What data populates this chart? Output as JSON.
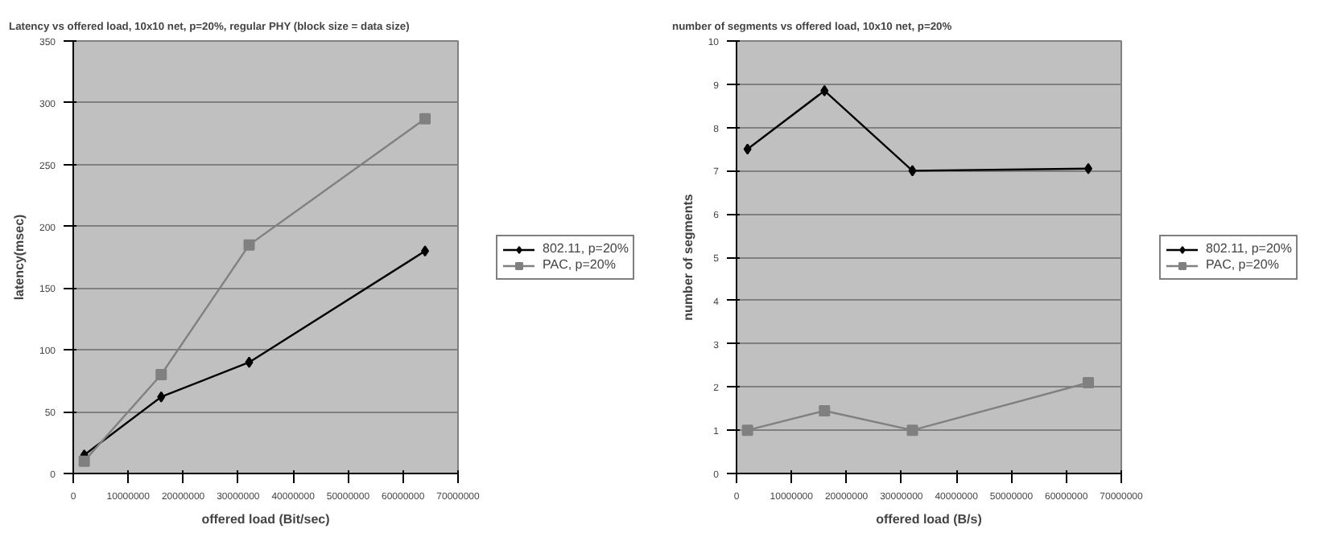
{
  "chart_data": [
    {
      "type": "line",
      "title": "Latency vs offered load, 10x10 net, p=20%, regular PHY (block size = data size)",
      "xlabel": "offered load (Bit/sec)",
      "ylabel": "latency(msec)",
      "x": [
        2000000,
        16000000,
        32000000,
        64000000
      ],
      "series": [
        {
          "name": "802.11, p=20%",
          "color": "#000000",
          "marker": "diamond",
          "values": [
            15,
            62,
            90,
            180
          ]
        },
        {
          "name": "PAC, p=20%",
          "color": "#808080",
          "marker": "square",
          "values": [
            10,
            80,
            185,
            287
          ]
        }
      ],
      "xlim": [
        0,
        70000000
      ],
      "xticks": [
        0,
        10000000,
        20000000,
        30000000,
        40000000,
        50000000,
        60000000,
        70000000
      ],
      "ylim": [
        0,
        350
      ],
      "yticks": [
        0,
        50,
        100,
        150,
        200,
        250,
        300,
        350
      ],
      "grid": "y",
      "legend": "right"
    },
    {
      "type": "line",
      "title": "number of segments vs offered load, 10x10 net, p=20%",
      "xlabel": "offered load (B/s)",
      "ylabel": "number of segments",
      "x": [
        2000000,
        16000000,
        32000000,
        64000000
      ],
      "series": [
        {
          "name": "802.11, p=20%",
          "color": "#000000",
          "marker": "diamond",
          "values": [
            7.5,
            8.85,
            7.0,
            7.05
          ]
        },
        {
          "name": "PAC, p=20%",
          "color": "#808080",
          "marker": "square",
          "values": [
            1.0,
            1.45,
            1.0,
            2.1
          ]
        }
      ],
      "xlim": [
        0,
        70000000
      ],
      "xticks": [
        0,
        10000000,
        20000000,
        30000000,
        40000000,
        50000000,
        60000000,
        70000000
      ],
      "ylim": [
        0,
        10
      ],
      "yticks": [
        0,
        1,
        2,
        3,
        4,
        5,
        6,
        7,
        8,
        9,
        10
      ],
      "grid": "y",
      "legend": "right"
    }
  ]
}
